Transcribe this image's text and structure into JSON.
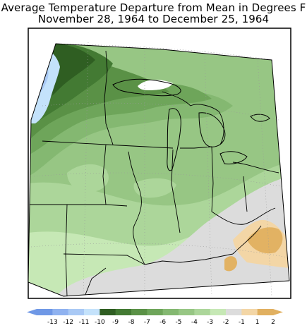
{
  "title_line1": "Average Temperature Departure from Mean in Degrees F",
  "title_line2": "November 28, 1964 to December 25, 1964",
  "legend": {
    "labels": [
      "-13",
      "-12",
      "-11",
      "-10",
      "-9",
      "-8",
      "-7",
      "-6",
      "-5",
      "-4",
      "-3",
      "-2",
      "-1",
      "1",
      "2"
    ],
    "colors": [
      "#6f98e6",
      "#8fb2f0",
      "#a9c9f5",
      "#c4e2fb",
      "#2f5e22",
      "#437a33",
      "#5a9146",
      "#6ea55a",
      "#84b871",
      "#97c684",
      "#acd69a",
      "#c6e8b5",
      "#dcdcdc",
      "#f3d6a6",
      "#e1b060"
    ]
  },
  "map": {
    "colors": {
      "outside": "#ffffff",
      "lightgray": "#dcdcdc",
      "orange": "#e2b263",
      "tan": "#f3d6a6",
      "paleblue": "#c4e2fb",
      "blue": "#a9c9f5"
    }
  }
}
